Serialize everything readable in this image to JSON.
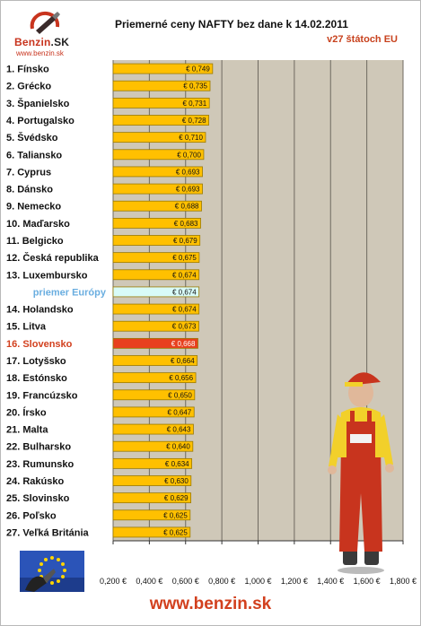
{
  "header": {
    "brand_main": "Benzin",
    "brand_suffix": ".SK",
    "brand_url": "www.benzin.sk",
    "title": "Priemerné ceny NAFTY bez dane k 14.02.2011",
    "subtitle": "v27 štátoch EU"
  },
  "footer": {
    "url": "www.benzin.sk"
  },
  "colors": {
    "plot_bg": "#cfc8b8",
    "bar": "#ffc000",
    "bar_border": "#9a7a00",
    "average_bar": "#d8fbf8",
    "highlight_bar": "#e8401e",
    "highlight_text": "#d2401e",
    "average_text": "#6aaee0"
  },
  "chart_data": {
    "type": "bar",
    "orientation": "horizontal",
    "title": "Priemerné ceny NAFTY bez dane k 14.02.2011",
    "subtitle": "v27 štátoch EU",
    "categories": [
      "1. Fínsko",
      "2. Grécko",
      "3. Španielsko",
      "4. Portugalsko",
      "5. Švédsko",
      "6. Taliansko",
      "7. Cyprus",
      "8. Dánsko",
      "9. Nemecko",
      "10. Maďarsko",
      "11. Belgicko",
      "12. Česká republika",
      "13. Luxembursko",
      "priemer Európy",
      "14. Holandsko",
      "15. Litva",
      "16. Slovensko",
      "17. Lotyšsko",
      "18. Estónsko",
      "19. Francúzsko",
      "20. Írsko",
      "21. Malta",
      "22. Bulharsko",
      "23. Rumunsko",
      "24. Rakúsko",
      "25. Slovinsko",
      "26. Poľsko",
      "27. Veľká Británia"
    ],
    "values": [
      0.749,
      0.735,
      0.731,
      0.728,
      0.71,
      0.7,
      0.693,
      0.693,
      0.688,
      0.683,
      0.679,
      0.675,
      0.674,
      0.674,
      0.674,
      0.673,
      0.668,
      0.664,
      0.656,
      0.65,
      0.647,
      0.643,
      0.64,
      0.634,
      0.63,
      0.629,
      0.625,
      0.625
    ],
    "value_labels": [
      "€ 0,749",
      "€ 0,735",
      "€ 0,731",
      "€ 0,728",
      "€ 0,710",
      "€ 0,700",
      "€ 0,693",
      "€ 0,693",
      "€ 0,688",
      "€ 0,683",
      "€ 0,679",
      "€ 0,675",
      "€ 0,674",
      "€ 0,674",
      "€ 0,674",
      "€ 0,673",
      "€ 0,668",
      "€ 0,664",
      "€ 0,656",
      "€ 0,650",
      "€ 0,647",
      "€ 0,643",
      "€ 0,640",
      "€ 0,634",
      "€ 0,630",
      "€ 0,629",
      "€ 0,625",
      "€ 0,625"
    ],
    "average_index": 13,
    "highlight_index": 16,
    "xlim": [
      0.2,
      1.8
    ],
    "xticks": [
      0.2,
      0.4,
      0.6,
      0.8,
      1.0,
      1.2,
      1.4,
      1.6,
      1.8
    ],
    "xtick_labels": [
      "0,200 €",
      "0,400 €",
      "0,600 €",
      "0,800 €",
      "1,000 €",
      "1,200 €",
      "1,400 €",
      "1,600 €",
      "1,800 €"
    ],
    "grid": "vertical",
    "legend": "none",
    "xlabel": "",
    "ylabel": ""
  }
}
